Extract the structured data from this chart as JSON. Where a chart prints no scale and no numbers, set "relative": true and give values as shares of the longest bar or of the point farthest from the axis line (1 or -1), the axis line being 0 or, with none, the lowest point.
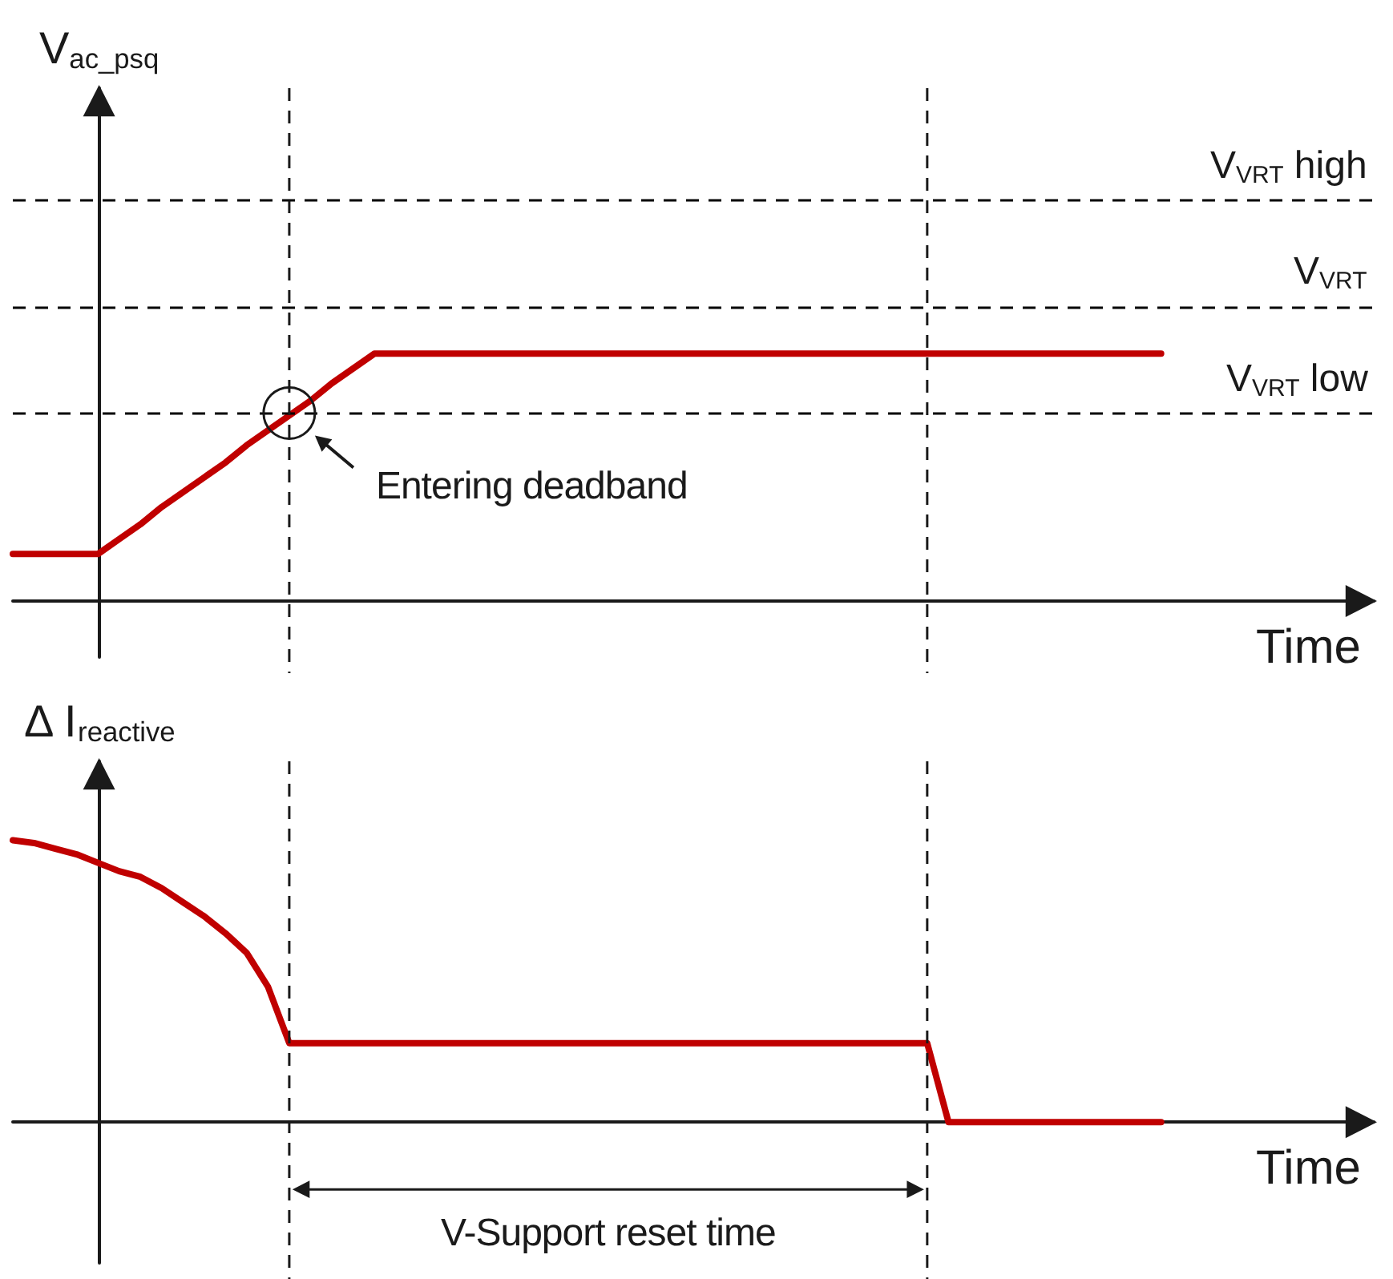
{
  "chart_data": [
    {
      "type": "line",
      "relative": true,
      "ylabel": "V$_{ac_psq}$",
      "xlabel": "Time",
      "grid": false,
      "marker": "none",
      "line_style": "solid",
      "categories": [
        null,
        null,
        null,
        null,
        null,
        null,
        null,
        null,
        null,
        null,
        null,
        null,
        null,
        null,
        null,
        null,
        null,
        null,
        null,
        null,
        null,
        null,
        null,
        null,
        null,
        null,
        null,
        null,
        null,
        null,
        null,
        null,
        null,
        null,
        null,
        null,
        null,
        null,
        null,
        null,
        null,
        null,
        null,
        null,
        null,
        null,
        null,
        null,
        null,
        null,
        null,
        null,
        null,
        null,
        null,
        null,
        null,
        null,
        null,
        null,
        null,
        null,
        null,
        null,
        null
      ],
      "series": [
        {
          "color": "#c00000",
          "values": [
            0.19,
            0.19,
            0.19,
            0.19,
            0.19,
            0.25,
            0.31,
            0.38,
            0.44,
            0.5,
            0.56,
            0.63,
            0.69,
            0.75,
            0.81,
            0.88,
            0.94,
            1,
            1,
            1,
            1,
            1,
            1,
            1,
            1,
            1,
            1,
            1,
            1,
            1,
            1,
            1,
            1,
            1,
            1,
            1,
            1,
            1,
            1,
            1,
            1,
            1,
            1,
            1,
            1,
            1,
            1,
            1,
            1,
            1,
            1,
            1,
            1,
            1,
            1,
            null,
            null,
            null,
            null,
            null,
            null,
            null,
            null,
            null,
            null
          ]
        }
      ],
      "ref_lines": [
        {
          "axis": "y",
          "value": 1.62,
          "label": "V$_{VRT}$ high",
          "line_style": "dashed",
          "color": "#000000"
        },
        {
          "axis": "y",
          "value": 1.19,
          "label": "V$_{VRT}$",
          "line_style": "dashed",
          "color": "#000000"
        },
        {
          "axis": "y",
          "value": 0.76,
          "label": "V$_{VRT}$ low",
          "line_style": "dashed",
          "color": "#000000"
        }
      ],
      "annotations": [
        "Entering deadband"
      ]
    },
    {
      "type": "line",
      "relative": true,
      "ylabel": "Δ I$_{reactive}$",
      "xlabel": "Time",
      "grid": false,
      "marker": "none",
      "line_style": "solid",
      "categories": [
        null,
        null,
        null,
        null,
        null,
        null,
        null,
        null,
        null,
        null,
        null,
        null,
        null,
        null,
        null,
        null,
        null,
        null,
        null,
        null,
        null,
        null,
        null,
        null,
        null,
        null,
        null,
        null,
        null,
        null,
        null,
        null,
        null,
        null,
        null,
        null,
        null,
        null,
        null,
        null,
        null,
        null,
        null,
        null,
        null,
        null,
        null,
        null,
        null,
        null,
        null,
        null,
        null,
        null,
        null,
        null,
        null,
        null,
        null,
        null,
        null,
        null,
        null,
        null,
        null
      ],
      "series": [
        {
          "color": "#c00000",
          "values": [
            1,
            0.99,
            0.97,
            0.95,
            0.92,
            0.89,
            0.87,
            0.83,
            0.78,
            0.73,
            0.67,
            0.6,
            0.48,
            0.28,
            0.28,
            0.28,
            0.28,
            0.28,
            0.28,
            0.28,
            0.28,
            0.28,
            0.28,
            0.28,
            0.28,
            0.28,
            0.28,
            0.28,
            0.28,
            0.28,
            0.28,
            0.28,
            0.28,
            0.28,
            0.28,
            0.28,
            0.28,
            0.28,
            0.28,
            0.28,
            0.28,
            0.28,
            0.28,
            0.28,
            0,
            0,
            0,
            0,
            0,
            0,
            0,
            0,
            0,
            0,
            0,
            null,
            null,
            null,
            null,
            null,
            null,
            null,
            null,
            null,
            null
          ]
        }
      ],
      "annotations": [
        "V-Support reset time"
      ]
    }
  ]
}
